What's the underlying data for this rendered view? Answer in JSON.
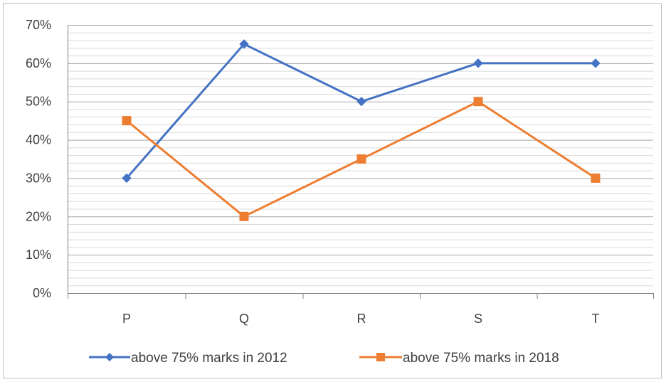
{
  "chart_data": {
    "type": "line",
    "categories": [
      "P",
      "Q",
      "R",
      "S",
      "T"
    ],
    "series": [
      {
        "name": "above 75% marks in 2012",
        "values": [
          30,
          65,
          50,
          60,
          60
        ],
        "color": "#4472C4",
        "marker": "diamond"
      },
      {
        "name": "above 75% marks in 2018",
        "values": [
          45,
          20,
          35,
          50,
          30
        ],
        "color": "#ED7D31",
        "marker": "square"
      }
    ],
    "y_ticks": [
      "0%",
      "10%",
      "20%",
      "30%",
      "40%",
      "50%",
      "60%",
      "70%"
    ],
    "ylim": [
      0,
      70
    ],
    "y_major_step": 10,
    "y_minor_step": 2,
    "grid": true,
    "legend_position": "bottom"
  }
}
